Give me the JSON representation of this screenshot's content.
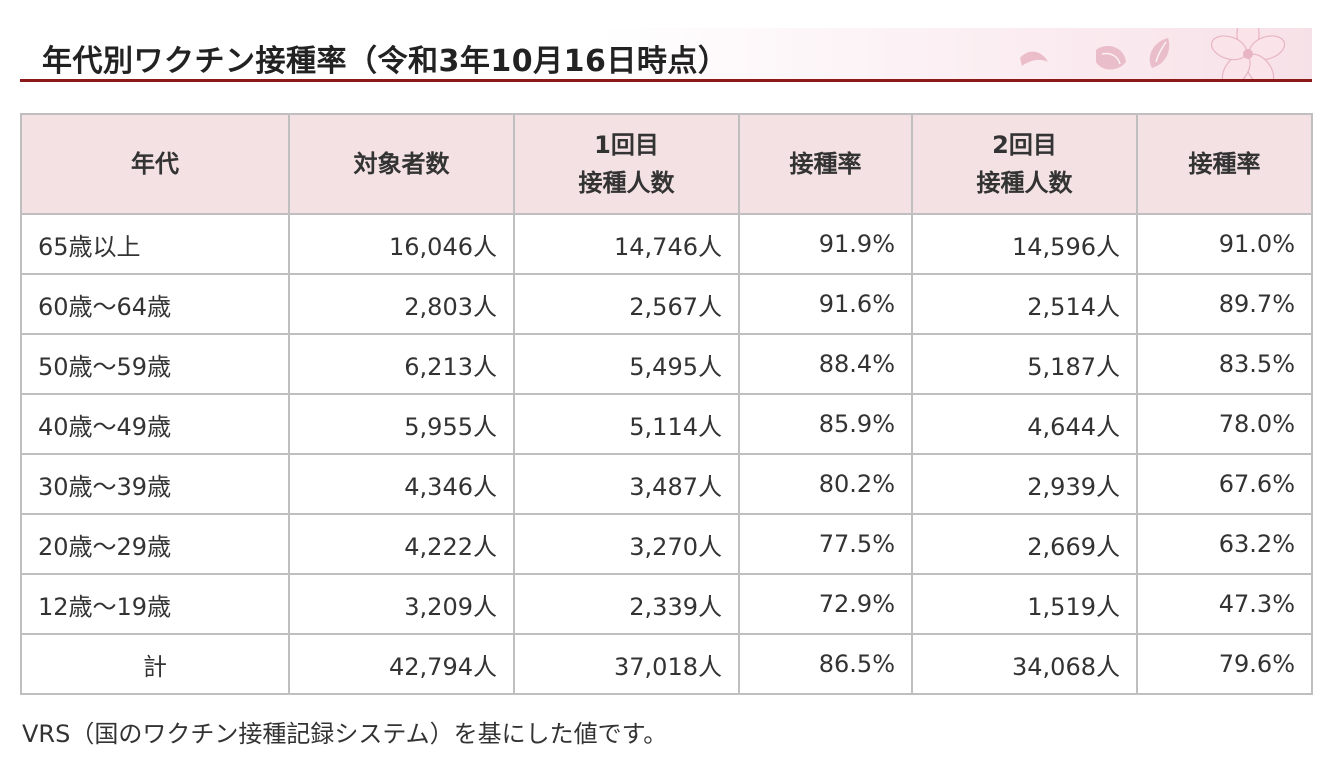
{
  "title": "年代別ワクチン接種率（令和3年10月16日時点）",
  "colors": {
    "header_bg": "#f3e1e4",
    "title_rule": "#8c1a1a",
    "border": "#bfbfbf",
    "petal": "#e7b5c3"
  },
  "decoration": [
    "cherry-petal-icon",
    "cherry-petal-icon",
    "cherry-petal-icon",
    "cherry-blossom-icon"
  ],
  "table": {
    "headers": {
      "age": "年代",
      "target": "対象者数",
      "first_line1": "1回目",
      "first_line2": "接種人数",
      "first_rate": "接種率",
      "second_line1": "2回目",
      "second_line2": "接種人数",
      "second_rate": "接種率"
    },
    "rows": [
      {
        "age": "65歳以上",
        "target": "16,046人",
        "first": "14,746人",
        "first_rate": "91.9%",
        "second": "14,596人",
        "second_rate": "91.0%"
      },
      {
        "age": "60歳～64歳",
        "target": "2,803人",
        "first": "2,567人",
        "first_rate": "91.6%",
        "second": "2,514人",
        "second_rate": "89.7%"
      },
      {
        "age": "50歳～59歳",
        "target": "6,213人",
        "first": "5,495人",
        "first_rate": "88.4%",
        "second": "5,187人",
        "second_rate": "83.5%"
      },
      {
        "age": "40歳～49歳",
        "target": "5,955人",
        "first": "5,114人",
        "first_rate": "85.9%",
        "second": "4,644人",
        "second_rate": "78.0%"
      },
      {
        "age": "30歳～39歳",
        "target": "4,346人",
        "first": "3,487人",
        "first_rate": "80.2%",
        "second": "2,939人",
        "second_rate": "67.6%"
      },
      {
        "age": "20歳～29歳",
        "target": "4,222人",
        "first": "3,270人",
        "first_rate": "77.5%",
        "second": "2,669人",
        "second_rate": "63.2%"
      },
      {
        "age": "12歳～19歳",
        "target": "3,209人",
        "first": "2,339人",
        "first_rate": "72.9%",
        "second": "1,519人",
        "second_rate": "47.3%"
      }
    ],
    "total": {
      "age": "計",
      "target": "42,794人",
      "first": "37,018人",
      "first_rate": "86.5%",
      "second": "34,068人",
      "second_rate": "79.6%"
    }
  },
  "footnote": "VRS（国のワクチン接種記録システム）を基にした値です。"
}
